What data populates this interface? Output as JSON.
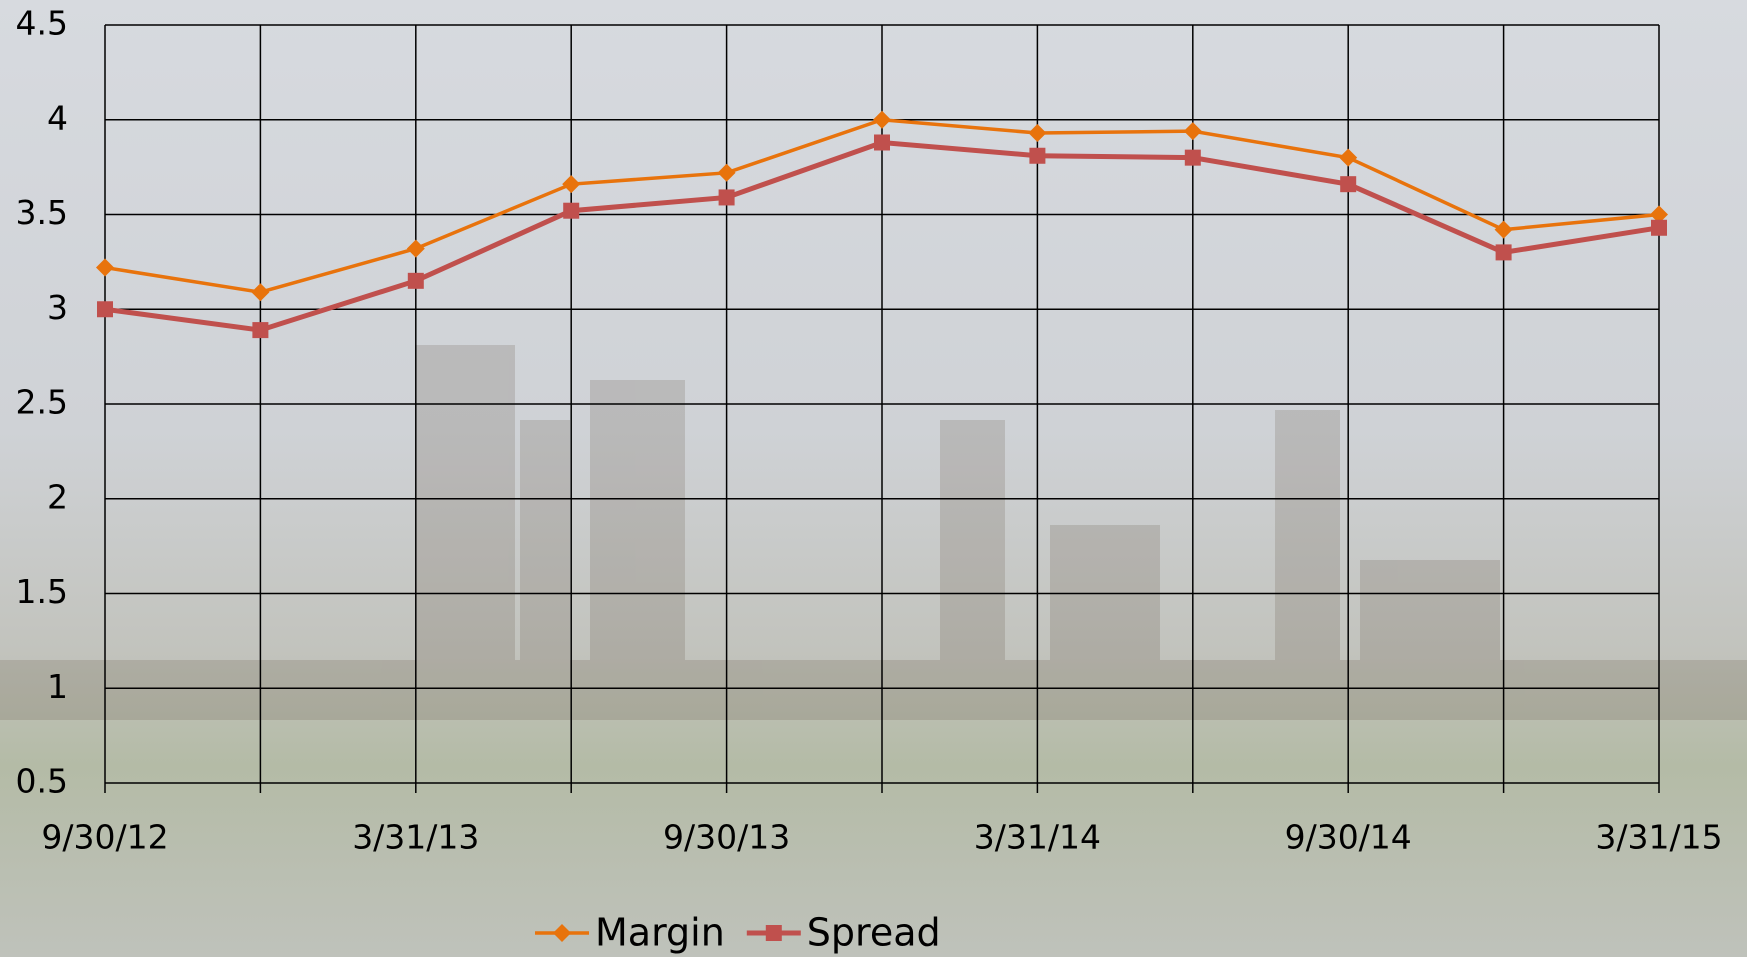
{
  "chart_data": {
    "type": "line",
    "categories": [
      "9/30/12",
      null,
      "3/31/13",
      null,
      "9/30/13",
      null,
      "3/31/14",
      null,
      "9/30/14",
      null,
      "3/31/15"
    ],
    "series": [
      {
        "name": "Margin",
        "color": "#e8730c",
        "marker": "diamond",
        "values": [
          3.22,
          3.09,
          3.32,
          3.66,
          3.72,
          4.0,
          3.93,
          3.94,
          3.8,
          3.42,
          3.5
        ]
      },
      {
        "name": "Spread",
        "color": "#c0504d",
        "marker": "square",
        "values": [
          3.0,
          2.89,
          3.15,
          3.52,
          3.59,
          3.88,
          3.81,
          3.8,
          3.66,
          3.3,
          3.43
        ]
      }
    ],
    "ylim": [
      0.5,
      4.5
    ],
    "yticks": [
      0.5,
      1,
      1.5,
      2,
      2.5,
      3,
      3.5,
      4,
      4.5
    ],
    "grid": true,
    "legend": "bottom"
  }
}
